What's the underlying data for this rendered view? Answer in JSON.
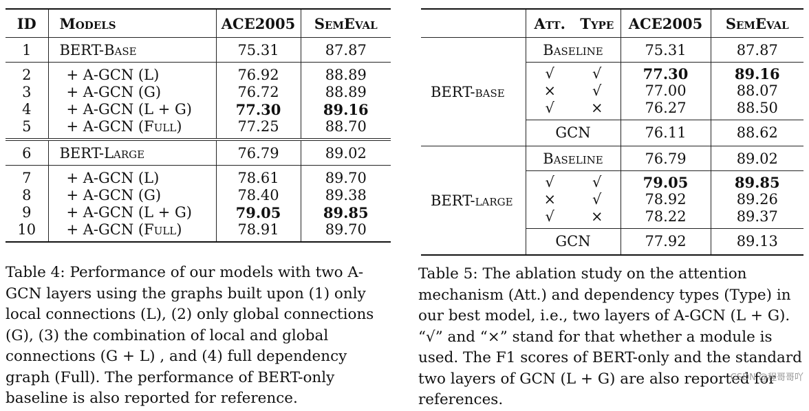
{
  "table4": {
    "headers": {
      "id": "ID",
      "models": "Models",
      "ace": "ACE2005",
      "sem": "SemEval"
    },
    "rows": [
      {
        "id": "1",
        "model": "BERT-Base",
        "ace": "75.31",
        "sem": "87.87"
      },
      {
        "id": "2",
        "model": "+ A-GCN (L)",
        "ace": "76.92",
        "sem": "88.89"
      },
      {
        "id": "3",
        "model": "+ A-GCN (G)",
        "ace": "76.72",
        "sem": "88.89"
      },
      {
        "id": "4",
        "model": "+ A-GCN (L + G)",
        "ace": "77.30",
        "sem": "89.16"
      },
      {
        "id": "5",
        "model": "+ A-GCN (Full)",
        "ace": "77.25",
        "sem": "88.70"
      },
      {
        "id": "6",
        "model": "BERT-Large",
        "ace": "76.79",
        "sem": "89.02"
      },
      {
        "id": "7",
        "model": "+ A-GCN (L)",
        "ace": "78.61",
        "sem": "89.70"
      },
      {
        "id": "8",
        "model": "+ A-GCN (G)",
        "ace": "78.40",
        "sem": "89.38"
      },
      {
        "id": "9",
        "model": "+ A-GCN (L + G)",
        "ace": "79.05",
        "sem": "89.85"
      },
      {
        "id": "10",
        "model": "+ A-GCN (Full)",
        "ace": "78.91",
        "sem": "89.70"
      }
    ],
    "caption": "Table 4: Performance of our models with two A-GCN layers using the graphs built upon (1) only local connections (L), (2) only global connections (G), (3) the combination of local and global connections (G + L) , and (4) full dependency graph (Full). The performance of BERT-only baseline is also reported for reference."
  },
  "table5": {
    "headers": {
      "att": "Att.",
      "type": "Type",
      "ace": "ACE2005",
      "sem": "SemEval"
    },
    "groups": [
      {
        "name": "BERT-base",
        "baseline": {
          "label": "Baseline",
          "ace": "75.31",
          "sem": "87.87"
        },
        "rows": [
          {
            "att": "√",
            "type": "√",
            "ace": "77.30",
            "sem": "89.16"
          },
          {
            "att": "×",
            "type": "√",
            "ace": "77.00",
            "sem": "88.07"
          },
          {
            "att": "√",
            "type": "×",
            "ace": "76.27",
            "sem": "88.50"
          }
        ],
        "gcn": {
          "label": "GCN",
          "ace": "76.11",
          "sem": "88.62"
        }
      },
      {
        "name": "BERT-large",
        "baseline": {
          "label": "Baseline",
          "ace": "76.79",
          "sem": "89.02"
        },
        "rows": [
          {
            "att": "√",
            "type": "√",
            "ace": "79.05",
            "sem": "89.85"
          },
          {
            "att": "×",
            "type": "√",
            "ace": "78.92",
            "sem": "89.26"
          },
          {
            "att": "√",
            "type": "×",
            "ace": "78.22",
            "sem": "89.37"
          }
        ],
        "gcn": {
          "label": "GCN",
          "ace": "77.92",
          "sem": "89.13"
        }
      }
    ],
    "caption": "Table 5: The ablation study on the attention mechanism (Att.) and dependency types (Type) in our best model, i.e., two layers of A-GCN (L + G). “√” and “×” stand for that whether a module is used. The F1 scores of BERT-only and the standard two layers of GCN (L + G) are also reported for references."
  },
  "watermark": "CSDN @程哥哥吖"
}
